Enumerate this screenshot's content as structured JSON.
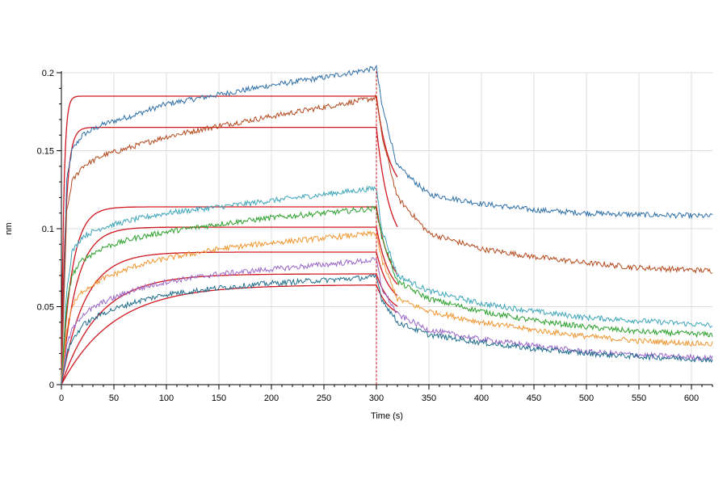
{
  "chart_data": {
    "type": "line",
    "title": "",
    "xlabel": "Time (s)",
    "ylabel": "nm",
    "xlim": [
      0,
      620
    ],
    "ylim": [
      0,
      0.2
    ],
    "x_ticks": [
      0,
      50,
      100,
      150,
      200,
      250,
      300,
      350,
      400,
      450,
      500,
      550,
      600
    ],
    "y_ticks": [
      0,
      0.05,
      0.1,
      0.15,
      0.2
    ],
    "y_tick_labels": [
      "0",
      "0.05",
      "0.1",
      "0.15",
      "0.2"
    ],
    "grid": true,
    "legend": "none",
    "vertical_marker_x": 300,
    "series": [
      {
        "color": "#2e6fa7",
        "x": [
          0,
          5,
          10,
          20,
          40,
          70,
          100,
          150,
          200,
          250,
          300,
          305,
          320,
          350,
          400,
          450,
          500,
          550,
          620
        ],
        "values": [
          0,
          0.13,
          0.15,
          0.16,
          0.167,
          0.173,
          0.18,
          0.186,
          0.192,
          0.197,
          0.203,
          0.18,
          0.14,
          0.122,
          0.116,
          0.112,
          0.11,
          0.109,
          0.108
        ]
      },
      {
        "color": "#b4481c",
        "x": [
          0,
          5,
          10,
          20,
          40,
          70,
          100,
          150,
          200,
          250,
          300,
          305,
          320,
          350,
          400,
          450,
          500,
          550,
          620
        ],
        "values": [
          0,
          0.11,
          0.13,
          0.14,
          0.147,
          0.153,
          0.159,
          0.166,
          0.172,
          0.178,
          0.184,
          0.16,
          0.12,
          0.097,
          0.087,
          0.082,
          0.078,
          0.075,
          0.073
        ]
      },
      {
        "color": "#3ba5b8",
        "x": [
          0,
          5,
          10,
          20,
          40,
          70,
          100,
          150,
          200,
          250,
          300,
          305,
          320,
          350,
          400,
          450,
          500,
          550,
          620
        ],
        "values": [
          0,
          0.06,
          0.085,
          0.095,
          0.101,
          0.106,
          0.11,
          0.114,
          0.118,
          0.122,
          0.126,
          0.1,
          0.07,
          0.06,
          0.052,
          0.047,
          0.043,
          0.041,
          0.038
        ]
      },
      {
        "color": "#2ca02c",
        "x": [
          0,
          5,
          10,
          20,
          40,
          70,
          100,
          150,
          200,
          250,
          300,
          305,
          320,
          350,
          400,
          450,
          500,
          550,
          620
        ],
        "values": [
          0,
          0.05,
          0.07,
          0.08,
          0.088,
          0.094,
          0.098,
          0.103,
          0.107,
          0.11,
          0.113,
          0.095,
          0.066,
          0.055,
          0.047,
          0.041,
          0.037,
          0.034,
          0.032
        ]
      },
      {
        "color": "#f0952e",
        "x": [
          0,
          5,
          10,
          20,
          40,
          70,
          100,
          150,
          200,
          250,
          300,
          305,
          320,
          350,
          400,
          450,
          500,
          550,
          620
        ],
        "values": [
          0,
          0.035,
          0.05,
          0.06,
          0.068,
          0.076,
          0.081,
          0.087,
          0.091,
          0.094,
          0.097,
          0.08,
          0.055,
          0.047,
          0.04,
          0.035,
          0.031,
          0.028,
          0.026
        ]
      },
      {
        "color": "#9a66c8",
        "x": [
          0,
          5,
          10,
          20,
          40,
          70,
          100,
          150,
          200,
          250,
          300,
          305,
          320,
          350,
          400,
          450,
          500,
          550,
          620
        ],
        "values": [
          0,
          0.025,
          0.035,
          0.045,
          0.053,
          0.061,
          0.066,
          0.071,
          0.074,
          0.077,
          0.08,
          0.062,
          0.045,
          0.035,
          0.029,
          0.025,
          0.021,
          0.019,
          0.017
        ]
      },
      {
        "color": "#1f6e8c",
        "x": [
          0,
          5,
          10,
          20,
          40,
          70,
          100,
          150,
          200,
          250,
          300,
          305,
          320,
          350,
          400,
          450,
          500,
          550,
          620
        ],
        "values": [
          0,
          0.02,
          0.028,
          0.038,
          0.046,
          0.053,
          0.058,
          0.062,
          0.065,
          0.067,
          0.069,
          0.055,
          0.04,
          0.032,
          0.027,
          0.023,
          0.02,
          0.018,
          0.016
        ]
      }
    ],
    "fit_series": [
      {
        "color": "#d0181f",
        "plateau": 0.185,
        "k": 0.45,
        "dissoc_end": 0.12
      },
      {
        "color": "#d0181f",
        "plateau": 0.165,
        "k": 0.25,
        "dissoc_end": 0.085
      },
      {
        "color": "#d0181f",
        "plateau": 0.114,
        "k": 0.1,
        "dissoc_end": 0.06
      },
      {
        "color": "#d0181f",
        "plateau": 0.101,
        "k": 0.07,
        "dissoc_end": 0.055
      },
      {
        "color": "#d0181f",
        "plateau": 0.085,
        "k": 0.045,
        "dissoc_end": 0.05
      },
      {
        "color": "#d0181f",
        "plateau": 0.071,
        "k": 0.028,
        "dissoc_end": 0.045
      },
      {
        "color": "#d0181f",
        "plateau": 0.064,
        "k": 0.02,
        "dissoc_end": 0.042
      }
    ]
  }
}
